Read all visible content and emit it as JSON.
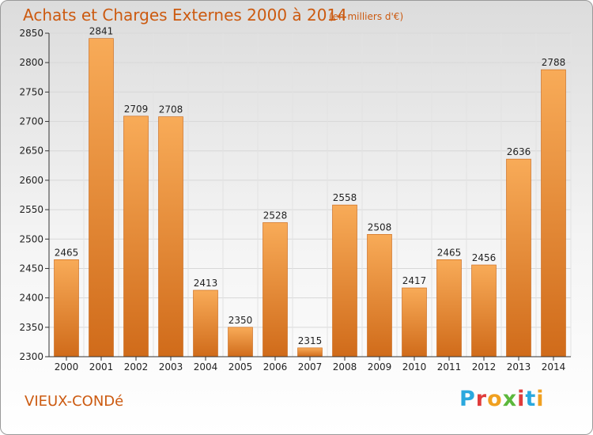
{
  "header": {
    "title": "Achats et Charges Externes 2000 à 2014",
    "subtitle": "(en milliers d'€)"
  },
  "footer": {
    "city": "VIEUX-CONDé",
    "logo_text": "Proxiti"
  },
  "colors": {
    "accent": "#cc5a10",
    "bar_light": "#f8ab58",
    "bar_dark": "#d06b1a",
    "logo": [
      "#2aa8de",
      "#e03c3c",
      "#f0a020",
      "#5cb83c",
      "#e03c3c",
      "#2aa8de",
      "#f0a020"
    ]
  },
  "chart_data": {
    "type": "bar",
    "title": "Achats et Charges Externes 2000 à 2014",
    "subtitle": "(en milliers d'€)",
    "categories": [
      "2000",
      "2001",
      "2002",
      "2003",
      "2004",
      "2005",
      "2006",
      "2007",
      "2008",
      "2009",
      "2010",
      "2011",
      "2012",
      "2013",
      "2014"
    ],
    "values": [
      2465,
      2841,
      2709,
      2708,
      2413,
      2350,
      2528,
      2315,
      2558,
      2508,
      2417,
      2465,
      2456,
      2636,
      2788
    ],
    "data_labels": [
      "2465",
      "2841",
      "2709",
      "2708",
      "2413",
      "2350",
      "2528",
      "2315",
      "2558",
      "2508",
      "2417",
      "2465",
      "2456",
      "2636",
      "2788"
    ],
    "yticks": [
      "2300",
      "2350",
      "2400",
      "2450",
      "2500",
      "2550",
      "2600",
      "2650",
      "2700",
      "2750",
      "2800",
      "2850"
    ],
    "ylim": [
      2300,
      2850
    ],
    "xlabel": "",
    "ylabel": "",
    "grid": true,
    "legend": "none"
  }
}
